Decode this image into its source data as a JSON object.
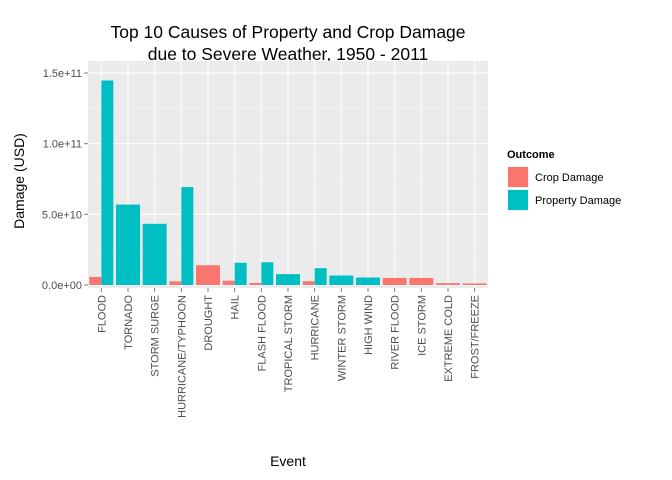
{
  "chart_data": {
    "type": "bar",
    "title": "Top 10 Causes of Property and Crop Damage due to Severe Weather, 1950 - 2011",
    "title_lines": [
      "Top 10 Causes of Property and Crop Damage",
      "due to Severe Weather, 1950 - 2011"
    ],
    "xlabel": "Event",
    "ylabel": "Damage (USD)",
    "ylim": [
      0,
      150000000000
    ],
    "yticks": [
      0,
      50000000000,
      100000000000,
      150000000000
    ],
    "ytick_labels": [
      "0.0e+00",
      "5.0e+10",
      "1.0e+11",
      "1.5e+11"
    ],
    "grid": true,
    "legend": {
      "title": "Outcome",
      "position": "right"
    },
    "categories": [
      "FLOOD",
      "TORNADO",
      "STORM SURGE",
      "HURRICANE/TYPHOON",
      "DROUGHT",
      "HAIL",
      "FLASH FLOOD",
      "TROPICAL STORM",
      "HURRICANE",
      "WINTER STORM",
      "HIGH WIND",
      "RIVER FLOOD",
      "ICE STORM",
      "EXTREME COLD",
      "FROST/FREEZE"
    ],
    "series": [
      {
        "name": "Crop Damage",
        "color": "#F8766D",
        "values": [
          5700000000,
          null,
          null,
          2600000000,
          14000000000,
          3000000000,
          1400000000,
          null,
          2700000000,
          null,
          null,
          5000000000,
          5000000000,
          1300000000,
          1100000000
        ]
      },
      {
        "name": "Property Damage",
        "color": "#00BFC4",
        "values": [
          144700000000,
          56900000000,
          43300000000,
          69300000000,
          null,
          15700000000,
          16100000000,
          7700000000,
          11900000000,
          6700000000,
          5300000000,
          null,
          null,
          null,
          null
        ]
      }
    ]
  }
}
